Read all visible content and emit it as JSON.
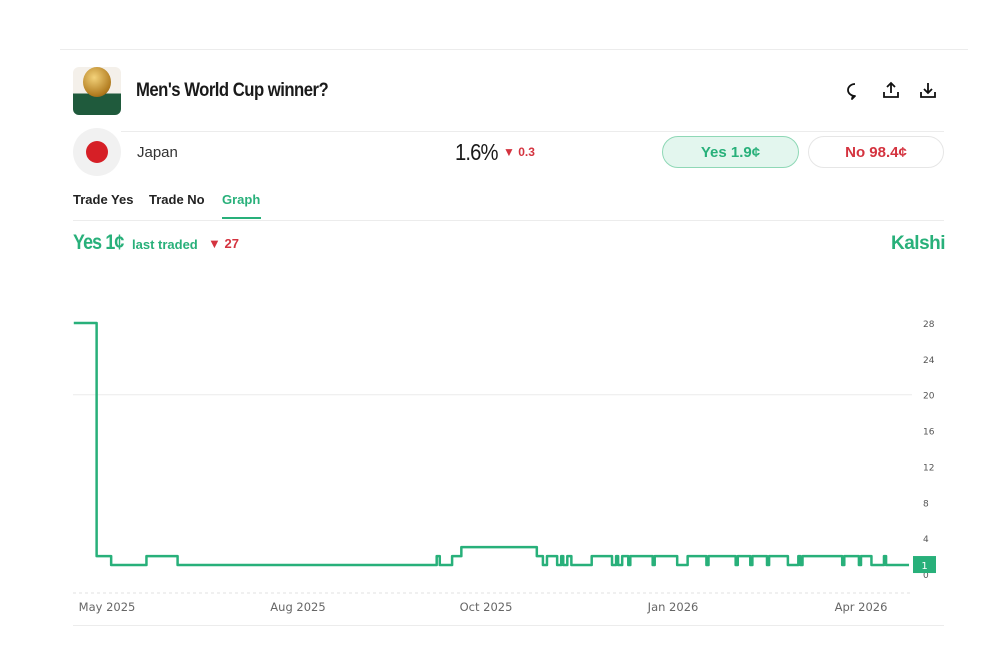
{
  "header": {
    "title": "Men's World Cup winner?",
    "icons": [
      "comment-icon",
      "share-icon",
      "download-icon"
    ]
  },
  "market": {
    "name": "Japan",
    "probability": "1.6%",
    "change": "▼ 0.3",
    "yes_button": "Yes 1.9¢",
    "no_button": "No 98.4¢"
  },
  "tabs": [
    {
      "label": "Trade Yes"
    },
    {
      "label": "Trade No"
    },
    {
      "label": "Graph",
      "active": true
    }
  ],
  "graph_header": {
    "price": "Yes 1¢",
    "last_traded": "last traded",
    "change": "▼ 27",
    "brand": "Kalshi"
  },
  "colors": {
    "accent": "#28b07a",
    "negative": "#d4333f"
  },
  "chart_data": {
    "type": "line",
    "step": true,
    "x_ticks": [
      {
        "label": "May 2025",
        "date": "2025-05-01"
      },
      {
        "label": "Aug 2025",
        "date": "2025-08-01"
      },
      {
        "label": "Oct 2025",
        "date": "2025-10-01"
      },
      {
        "label": "Jan 2026",
        "date": "2026-01-01"
      },
      {
        "label": "Apr 2026",
        "date": "2026-04-01"
      }
    ],
    "y_ticks": [
      0,
      4,
      8,
      12,
      16,
      20,
      24,
      28
    ],
    "ylim": [
      0,
      28
    ],
    "grid": "y=20 only",
    "current_value_label": "1",
    "series": [
      {
        "points": [
          [
            "2025-04-15",
            28
          ],
          [
            "2025-04-26",
            2
          ],
          [
            "2025-05-03",
            1
          ],
          [
            "2025-05-20",
            2
          ],
          [
            "2025-06-04",
            1
          ],
          [
            "2025-09-15",
            2
          ],
          [
            "2025-09-16",
            1
          ],
          [
            "2025-09-20",
            2
          ],
          [
            "2025-09-23",
            3
          ],
          [
            "2025-10-26",
            2
          ],
          [
            "2025-10-29",
            1
          ],
          [
            "2025-10-31",
            2
          ],
          [
            "2025-11-05",
            1
          ],
          [
            "2025-11-07",
            2
          ],
          [
            "2025-11-08",
            1
          ],
          [
            "2025-11-10",
            2
          ],
          [
            "2025-11-12",
            1
          ],
          [
            "2025-11-22",
            2
          ],
          [
            "2025-12-02",
            1
          ],
          [
            "2025-12-04",
            2
          ],
          [
            "2025-12-05",
            1
          ],
          [
            "2025-12-07",
            2
          ],
          [
            "2025-12-10",
            1
          ],
          [
            "2025-12-11",
            2
          ],
          [
            "2025-12-22",
            1
          ],
          [
            "2025-12-23",
            2
          ],
          [
            "2026-01-03",
            1
          ],
          [
            "2026-01-08",
            2
          ],
          [
            "2026-01-17",
            1
          ],
          [
            "2026-01-18",
            2
          ],
          [
            "2026-01-31",
            1
          ],
          [
            "2026-02-01",
            2
          ],
          [
            "2026-02-07",
            1
          ],
          [
            "2026-02-08",
            2
          ],
          [
            "2026-02-15",
            1
          ],
          [
            "2026-02-16",
            2
          ],
          [
            "2026-02-25",
            1
          ],
          [
            "2026-03-02",
            2
          ],
          [
            "2026-03-03",
            1
          ],
          [
            "2026-03-04",
            2
          ],
          [
            "2026-03-23",
            1
          ],
          [
            "2026-03-24",
            2
          ],
          [
            "2026-03-31",
            1
          ],
          [
            "2026-04-01",
            2
          ],
          [
            "2026-04-06",
            1
          ],
          [
            "2026-04-12",
            2
          ],
          [
            "2026-04-13",
            1
          ],
          [
            "2026-04-24",
            1
          ]
        ]
      }
    ]
  }
}
